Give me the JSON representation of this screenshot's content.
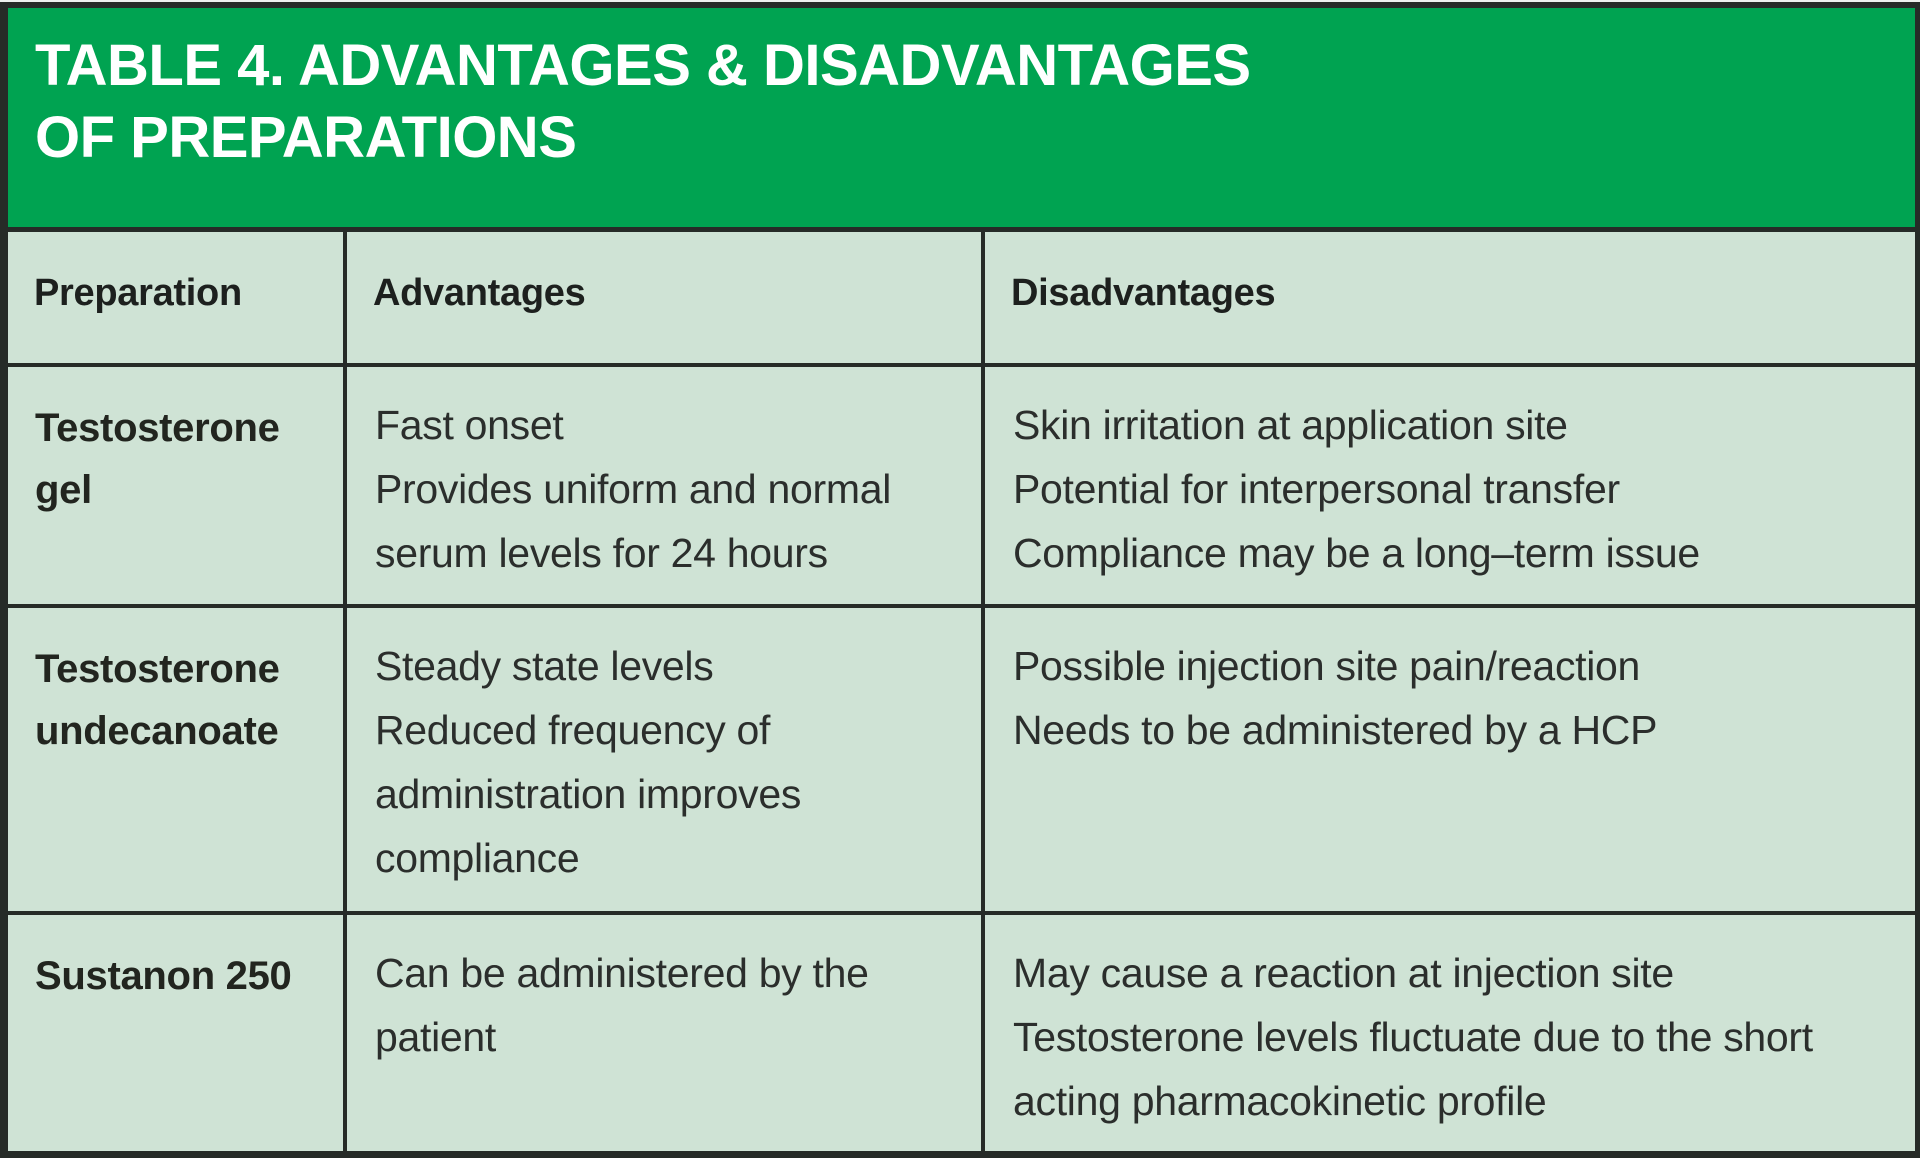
{
  "title": {
    "line1": "TABLE 4. ADVANTAGES & DISADVANTAGES",
    "line2": "OF PREPARATIONS"
  },
  "table": {
    "columns": [
      "Preparation",
      "Advantages",
      "Disadvantages"
    ],
    "rows": [
      {
        "preparation": "Testosterone gel",
        "advantages": [
          "Fast onset",
          "Provides uniform and normal serum levels for 24 hours"
        ],
        "disadvantages": [
          "Skin irritation at application site",
          "Potential for interpersonal transfer",
          "Compliance may be a long–term issue"
        ]
      },
      {
        "preparation": "Testosterone undecanoate",
        "advantages": [
          "Steady state levels",
          "Reduced frequency of administration improves compliance"
        ],
        "disadvantages": [
          "Possible injection site pain/reaction",
          "Needs to be administered by a HCP"
        ]
      },
      {
        "preparation": "Sustanon 250",
        "advantages": [
          "Can be administered by the patient"
        ],
        "disadvantages": [
          "May cause a reaction at injection site",
          "Testosterone levels fluctuate due to the short acting pharmacokinetic profile"
        ]
      }
    ]
  },
  "colors": {
    "title_band_green": "#00a351",
    "cell_background_green": "#cfe3d5",
    "grid_line_dark": "#262b27",
    "title_text": "#ffffff",
    "body_text": "#2b2e2c"
  }
}
